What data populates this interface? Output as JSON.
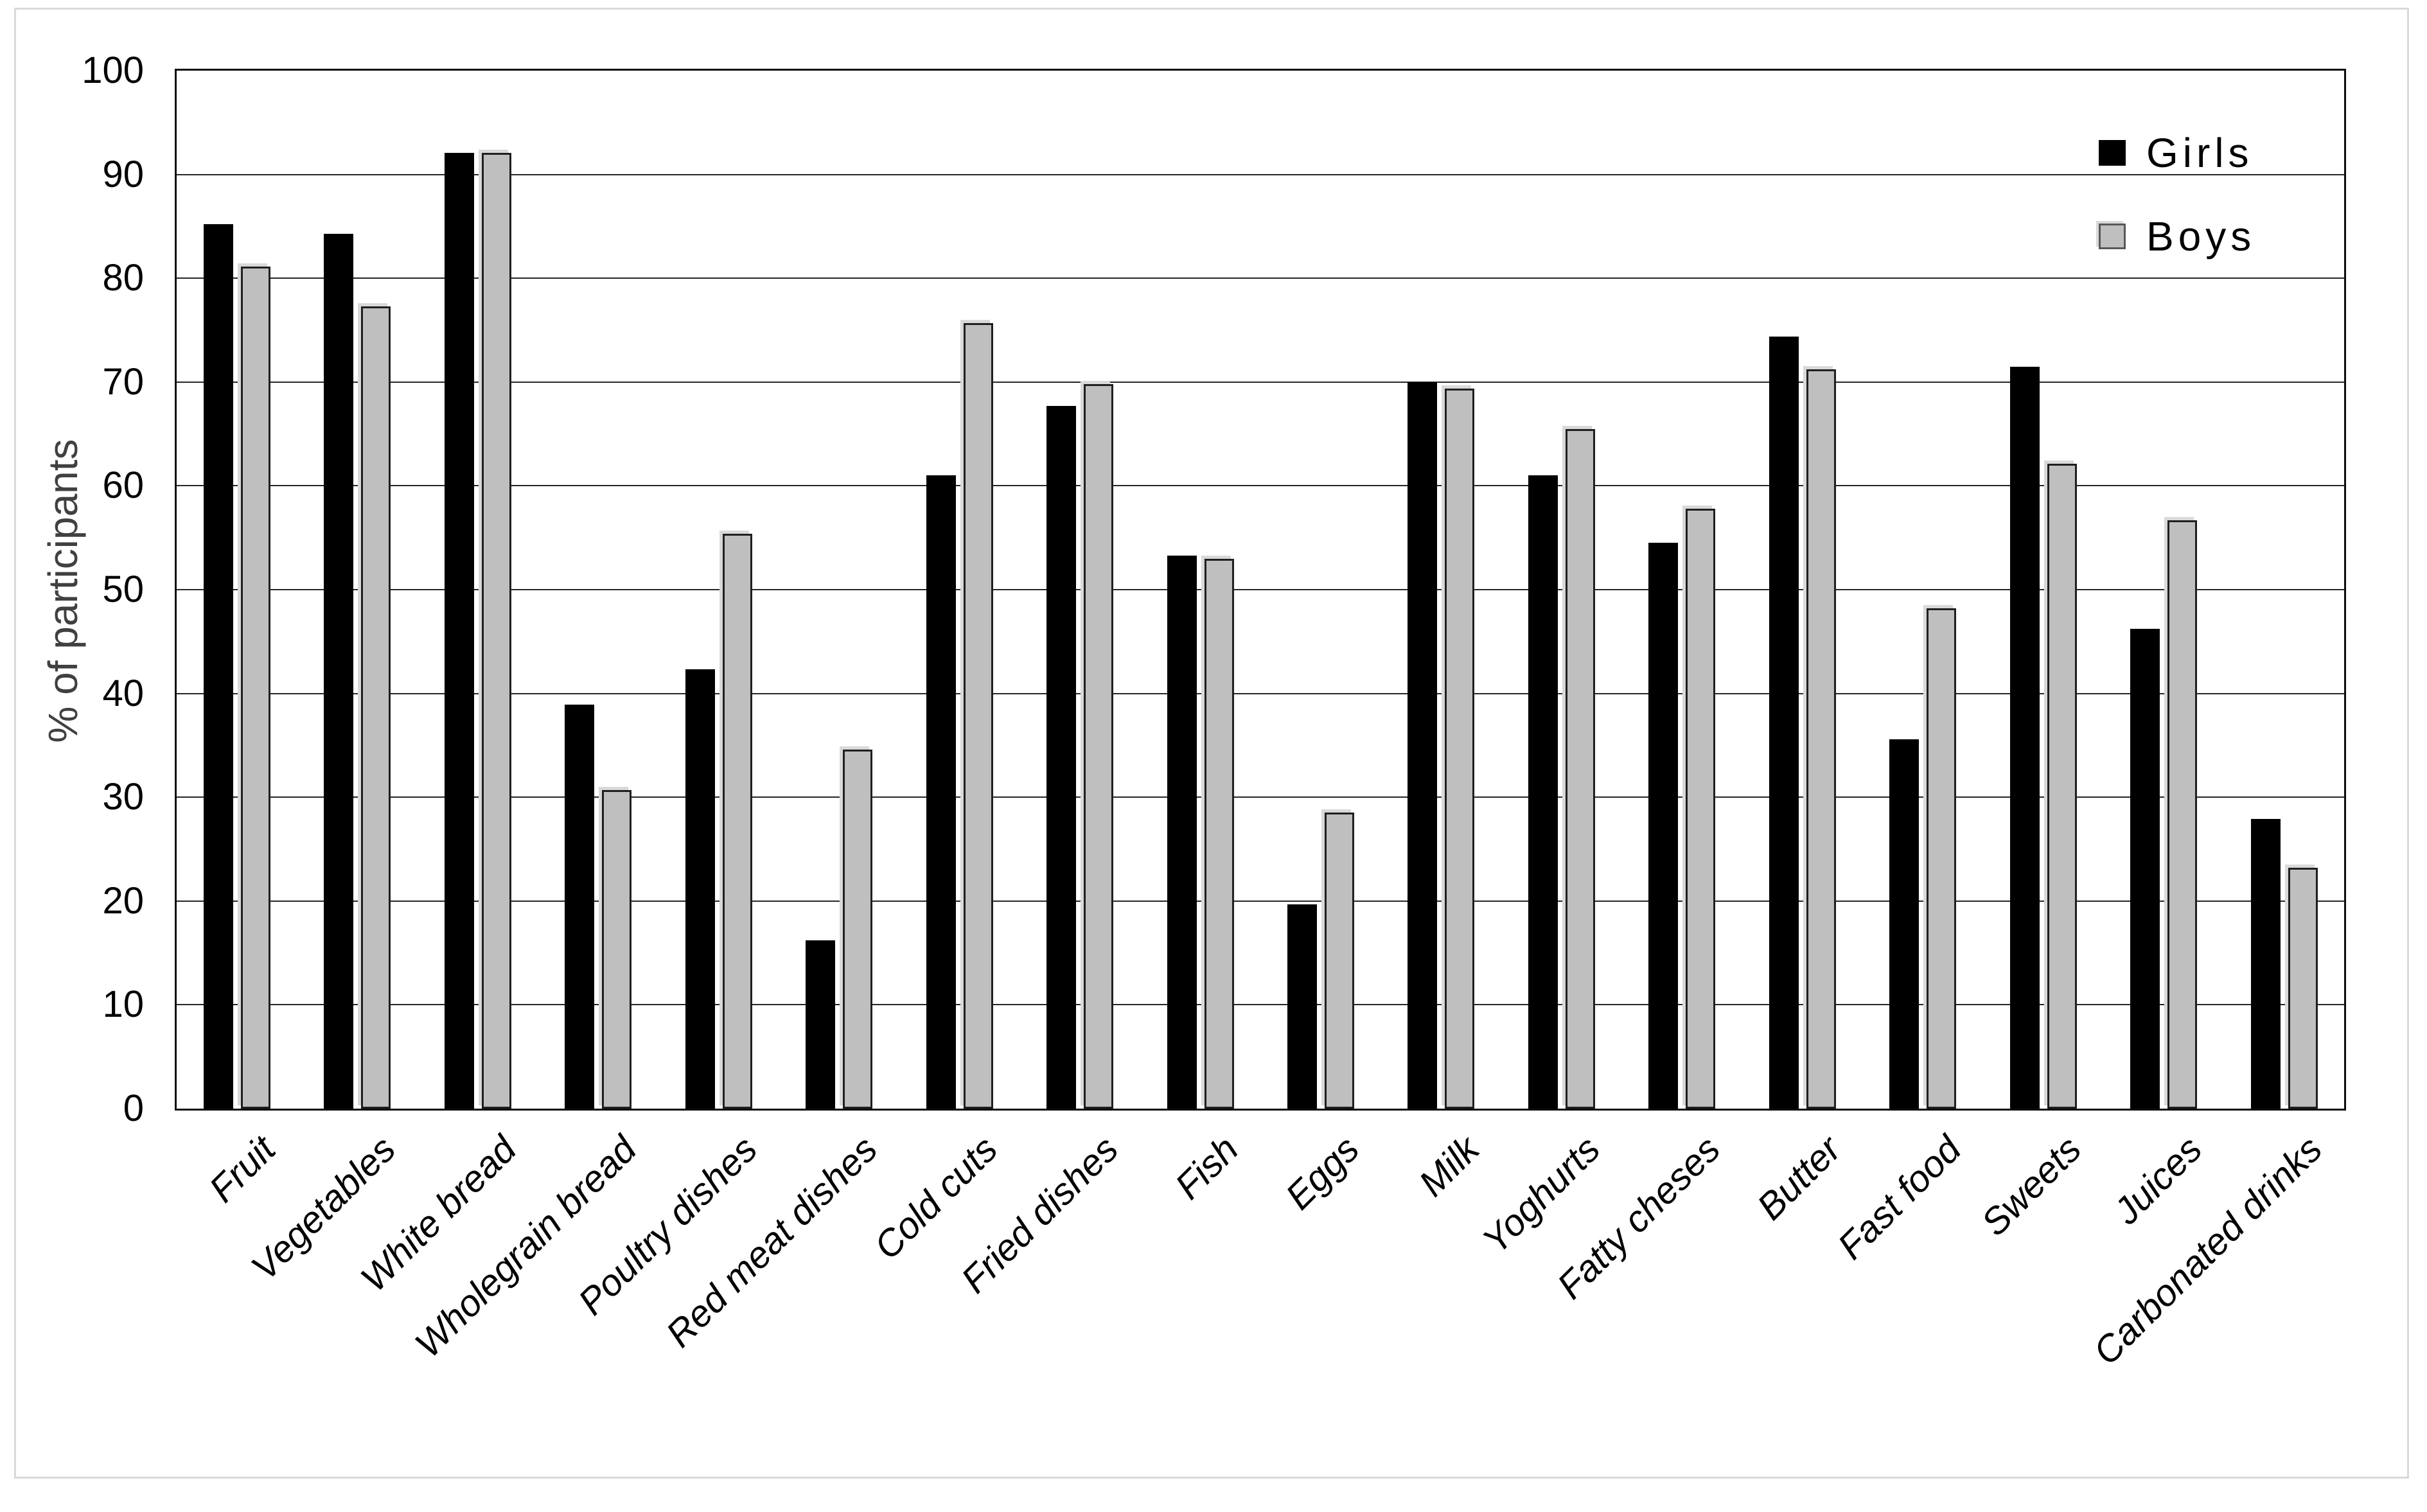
{
  "figure": {
    "background_color": "#ffffff",
    "border_color": "#d9d9d9",
    "gridline_color": "#262626",
    "axis_color": "#0d0d0d"
  },
  "chart_data": {
    "type": "bar",
    "title": "",
    "xlabel": "",
    "ylabel": "% of participants",
    "ylim": [
      0,
      100
    ],
    "ytick_step": 10,
    "yticks": [
      0,
      10,
      20,
      30,
      40,
      50,
      60,
      70,
      80,
      90,
      100
    ],
    "grid": "horizontal",
    "legend_position": "top-right-inside",
    "categories": [
      "Fruit",
      "Vegetables",
      "White bread",
      "Wholegrain bread",
      "Poultry dishes",
      "Red meat dishes",
      "Cold cuts",
      "Fried dishes",
      "Fish",
      "Eggs",
      "Milk",
      "Yoghurts",
      "Fatty cheses",
      "Butter",
      "Fast food",
      "Sweets",
      "Juices",
      "Carbonated drinks"
    ],
    "series": [
      {
        "name": "Girls",
        "color": "#000000",
        "values": [
          85.2,
          84.3,
          92.1,
          38.9,
          42.3,
          16.2,
          61.0,
          67.7,
          53.3,
          19.7,
          70.0,
          61.0,
          54.5,
          74.4,
          35.6,
          71.5,
          46.2,
          27.9
        ]
      },
      {
        "name": "Boys",
        "color": "#bfbfbf",
        "values": [
          81.1,
          77.3,
          92.1,
          30.7,
          55.4,
          34.6,
          75.7,
          69.8,
          53.0,
          28.5,
          69.4,
          65.5,
          57.8,
          71.2,
          48.2,
          62.1,
          56.7,
          23.2
        ]
      }
    ]
  }
}
